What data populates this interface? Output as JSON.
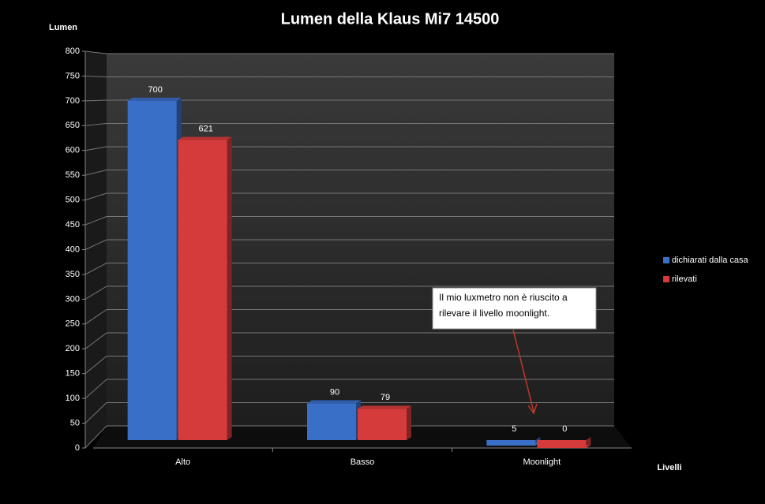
{
  "chart_data": {
    "type": "bar",
    "title": "Lumen della Klaus Mi7 14500",
    "y_label": "Lumen",
    "x_label": "Livelli",
    "categories": [
      "Alto",
      "Basso",
      "Moonlight"
    ],
    "series": [
      {
        "name": "dichiarati dalla casa",
        "color": "#3a6fc8",
        "values": [
          700,
          90,
          5
        ]
      },
      {
        "name": "rilevati",
        "color": "#d53b3b",
        "values": [
          621,
          79,
          0
        ]
      }
    ],
    "ylim": [
      0,
      800
    ],
    "yticks": [
      0,
      50,
      100,
      150,
      200,
      250,
      300,
      350,
      400,
      450,
      500,
      550,
      600,
      650,
      700,
      750,
      800
    ],
    "grid": true,
    "legend": "right",
    "annotation": [
      "Il mio luxmetro non è riuscito a",
      "rilevare il livello moonlight."
    ]
  }
}
